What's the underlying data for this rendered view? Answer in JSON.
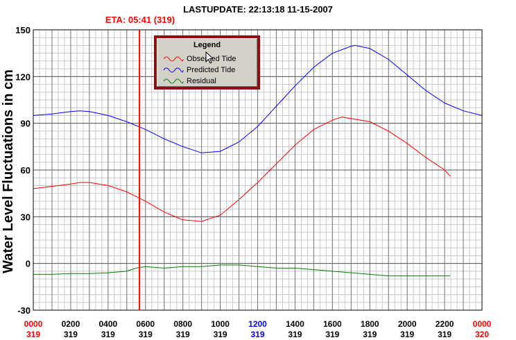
{
  "header": {
    "lastupdate": "LASTUPDATE: 22:13:18  11-15-2007",
    "eta": "ETA: 05:41 (319)"
  },
  "legend": {
    "title": "Legend",
    "items": [
      {
        "label": "Observed Tide",
        "color": "#ff0000"
      },
      {
        "label": "Predicted Tide",
        "color": "#0000ff"
      },
      {
        "label": "Residual",
        "color": "#008000"
      }
    ]
  },
  "chart_data": {
    "type": "line",
    "ylabel": "Water Level Fluctuations in cm",
    "ylim": [
      -30,
      150
    ],
    "xlim": [
      0,
      24
    ],
    "yticks": [
      150,
      120,
      90,
      60,
      30,
      0,
      -30
    ],
    "xticks": [
      {
        "time": "0000",
        "day": "319",
        "color": "#ff0000"
      },
      {
        "time": "0200",
        "day": "319",
        "color": "#000000"
      },
      {
        "time": "0400",
        "day": "319",
        "color": "#000000"
      },
      {
        "time": "0600",
        "day": "319",
        "color": "#000000"
      },
      {
        "time": "0800",
        "day": "319",
        "color": "#000000"
      },
      {
        "time": "1000",
        "day": "319",
        "color": "#000000"
      },
      {
        "time": "1200",
        "day": "319",
        "color": "#0000ff"
      },
      {
        "time": "1400",
        "day": "319",
        "color": "#000000"
      },
      {
        "time": "1600",
        "day": "319",
        "color": "#000000"
      },
      {
        "time": "1800",
        "day": "319",
        "color": "#000000"
      },
      {
        "time": "2000",
        "day": "319",
        "color": "#000000"
      },
      {
        "time": "2200",
        "day": "319",
        "color": "#000000"
      },
      {
        "time": "0000",
        "day": "320",
        "color": "#ff0000"
      }
    ],
    "eta_hour": 5.68,
    "grid": true,
    "series": [
      {
        "name": "Predicted Tide",
        "color": "#0000ff",
        "x": [
          0,
          1,
          2,
          2.5,
          3,
          4,
          5,
          6,
          7,
          8,
          9,
          10,
          11,
          12,
          13,
          14,
          15,
          16,
          17,
          17.2,
          18,
          19,
          20,
          21,
          22,
          23,
          24
        ],
        "y": [
          95,
          96,
          97.5,
          98,
          97.5,
          95,
          91,
          86,
          80,
          75,
          71,
          72,
          78,
          88,
          101,
          114,
          126,
          135,
          139.5,
          140,
          138,
          131,
          121,
          111,
          103,
          98,
          95
        ]
      },
      {
        "name": "Observed Tide",
        "color": "#ff0000",
        "x": [
          0,
          1,
          2,
          2.5,
          3,
          4,
          5,
          5.5,
          6,
          7,
          8,
          9,
          10,
          11,
          12,
          13,
          14,
          15,
          16,
          16.5,
          17,
          18,
          19,
          20,
          21,
          22,
          22.3
        ],
        "y": [
          48,
          49.5,
          51,
          52,
          52,
          50,
          46,
          43,
          40,
          33,
          28,
          27,
          31,
          41,
          52,
          64,
          76,
          86,
          92,
          94,
          93,
          91,
          85,
          77,
          68,
          60,
          56
        ]
      },
      {
        "name": "Residual",
        "color": "#008000",
        "x": [
          0,
          1,
          2,
          3,
          4,
          5,
          5.5,
          6,
          7,
          8,
          9,
          10,
          11,
          12,
          13,
          14,
          15,
          16,
          17,
          18,
          19,
          20,
          21,
          22,
          22.3
        ],
        "y": [
          -7,
          -7,
          -6.5,
          -6.5,
          -6,
          -5,
          -3,
          -2,
          -3,
          -2,
          -2,
          -1,
          -1,
          -2,
          -3,
          -3,
          -4,
          -5,
          -6,
          -7,
          -8,
          -8,
          -8,
          -8,
          -8
        ]
      }
    ]
  }
}
